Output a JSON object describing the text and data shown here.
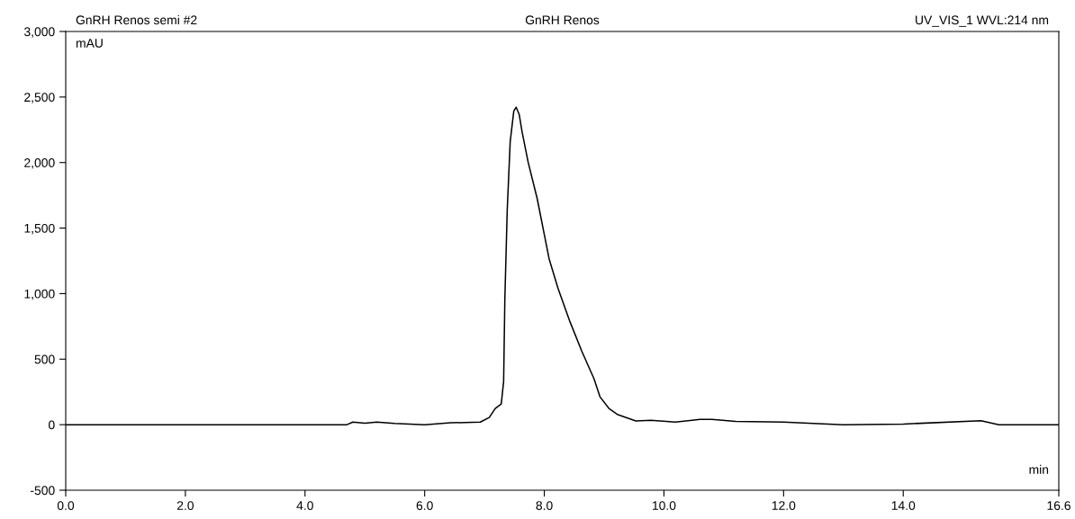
{
  "chart_data": {
    "type": "line",
    "title": "GnRH Renos",
    "annotations": [
      "GnRH Renos semi #2",
      "UV_VIS_1 WVL:214 nm"
    ],
    "xlabel": "min",
    "ylabel": "mAU",
    "x": [
      0,
      4.7,
      4.8,
      5.0,
      5.2,
      5.5,
      6.0,
      6.43,
      6.93,
      7.08,
      7.18,
      7.28,
      7.32,
      7.34,
      7.38,
      7.43,
      7.49,
      7.53,
      7.58,
      7.63,
      7.73,
      7.88,
      8.08,
      8.23,
      8.43,
      8.63,
      8.83,
      8.93,
      9.08,
      9.23,
      9.53,
      9.78,
      10.19,
      10.6,
      10.8,
      11.2,
      12.0,
      13.0,
      14.0,
      15.3,
      15.6,
      16.6
    ],
    "series": [
      {
        "color": "#000000",
        "values": [
          0,
          0,
          20,
          12,
          20,
          10,
          0,
          14,
          20,
          55,
          124,
          158,
          330,
          950,
          1637,
          2160,
          2394,
          2422,
          2367,
          2230,
          2002,
          1727,
          1266,
          1039,
          784,
          557,
          351,
          213,
          124,
          76,
          28,
          34,
          20,
          40,
          40,
          25,
          20,
          0,
          5,
          30,
          0,
          0
        ]
      }
    ],
    "xlim": [
      0,
      16.6
    ],
    "ylim": [
      -500,
      3000
    ],
    "xticks": [
      {
        "value": 0,
        "label": "0.0"
      },
      {
        "value": 2,
        "label": "2.0"
      },
      {
        "value": 4,
        "label": "4.0"
      },
      {
        "value": 6,
        "label": "6.0"
      },
      {
        "value": 8,
        "label": "8.0"
      },
      {
        "value": 10,
        "label": "10.0"
      },
      {
        "value": 12,
        "label": "12.0"
      },
      {
        "value": 14,
        "label": "14.0"
      },
      {
        "value": 16.6,
        "label": "16.6"
      }
    ],
    "yticks": [
      {
        "value": -500,
        "label": "-500"
      },
      0,
      500,
      {
        "value": 1000,
        "label": "1,000"
      },
      {
        "value": 1500,
        "label": "1,500"
      },
      {
        "value": 2000,
        "label": "2,000"
      },
      {
        "value": 2500,
        "label": "2,500"
      },
      {
        "value": 3000,
        "label": "3,000"
      }
    ],
    "grid": false,
    "legend": false,
    "marker": "none",
    "line_style": "solid"
  }
}
